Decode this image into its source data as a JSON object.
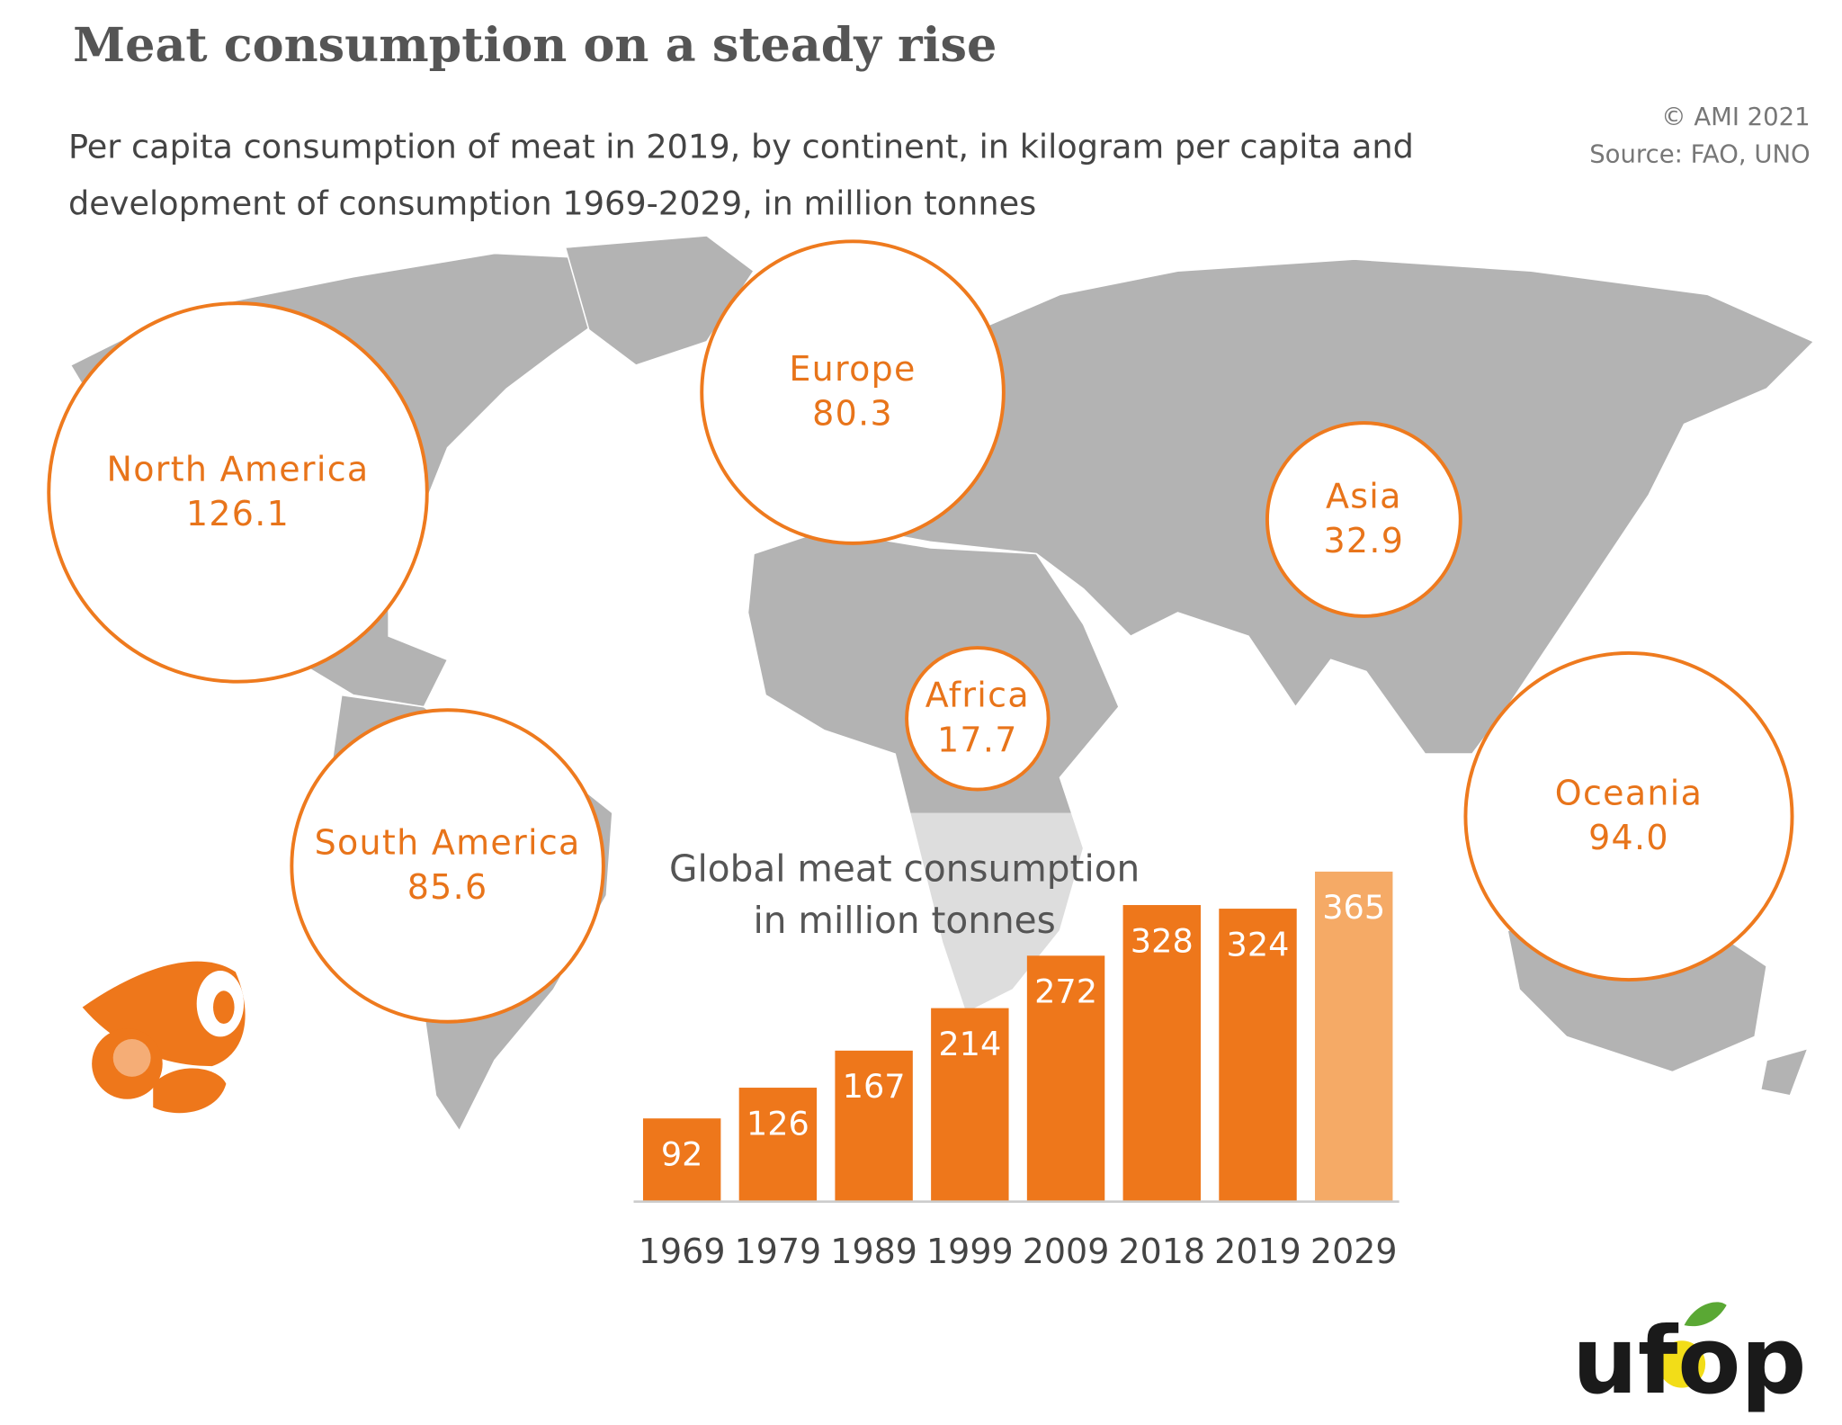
{
  "header": {
    "title": "Meat consumption on a steady rise",
    "subtitle": [
      "Per capita consumption of meat in 2019, by continent, in kilogram per capita and",
      "development of consumption 1969-2029, in million tonnes"
    ],
    "copyright": "© AMI 2021",
    "source": "Source: FAO, UNO"
  },
  "logo": "ufop",
  "chart_data": [
    {
      "type": "bubble",
      "categories": [
        "North America",
        "Europe",
        "Asia",
        "Africa",
        "South America",
        "Oceania"
      ],
      "values": [
        126.1,
        80.3,
        32.9,
        17.7,
        85.6,
        94.0
      ],
      "value_labels": [
        "126.1",
        "80.3",
        "32.9",
        "17.7",
        "85.6",
        "94.0"
      ],
      "color": "#ee7a1e"
    },
    {
      "type": "bar",
      "title": [
        "Global meat consumption",
        "in million tonnes"
      ],
      "categories": [
        "1969",
        "1979",
        "1989",
        "1999",
        "2009",
        "2018",
        "2019",
        "2029"
      ],
      "values": [
        92,
        126,
        167,
        214,
        272,
        328,
        324,
        365
      ],
      "colors": [
        "#ee771b",
        "#ee771b",
        "#ee771b",
        "#ee771b",
        "#ee771b",
        "#ee771b",
        "#ee771b",
        "#f5aa66"
      ],
      "ylim": [
        0,
        400
      ]
    }
  ]
}
